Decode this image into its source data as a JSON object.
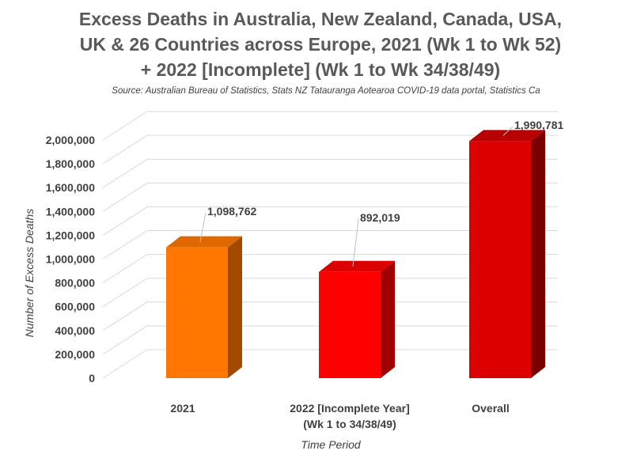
{
  "chart_data": {
    "type": "bar",
    "title_lines": [
      "Excess Deaths in Australia, New Zealand, Canada, USA,",
      "UK & 26 Countries across Europe, 2021 (Wk 1 to Wk 52)",
      "+ 2022 [Incomplete] (Wk 1 to Wk 34/38/49)"
    ],
    "subtitle": "Source: Australian Bureau of Statistics, Stats NZ Tatauranga Aotearoa COVID-19 data portal, Statistics Ca",
    "xlabel": "Time Period",
    "ylabel": "Number of Excess Deaths",
    "ylim": [
      0,
      2000000
    ],
    "ytick_step": 200000,
    "ytick_labels": [
      "0",
      "200,000",
      "400,000",
      "600,000",
      "800,000",
      "1,000,000",
      "1,200,000",
      "1,400,000",
      "1,600,000",
      "1,800,000",
      "2,000,000"
    ],
    "categories": [
      [
        "2021"
      ],
      [
        "2022 [Incomplete Year]",
        "(Wk 1 to 34/38/49)"
      ],
      [
        "Overall"
      ]
    ],
    "values": [
      1098762,
      892019,
      1990781
    ],
    "data_labels": [
      "1,098,762",
      "892,019",
      "1,990,781"
    ],
    "colors": [
      {
        "front": "#ff7700",
        "top": "#e06800",
        "side": "#a14a00"
      },
      {
        "front": "#ff0000",
        "top": "#dd0000",
        "side": "#a00000"
      },
      {
        "front": "#dd0000",
        "top": "#b80000",
        "side": "#7a0000"
      }
    ],
    "grid": true
  }
}
